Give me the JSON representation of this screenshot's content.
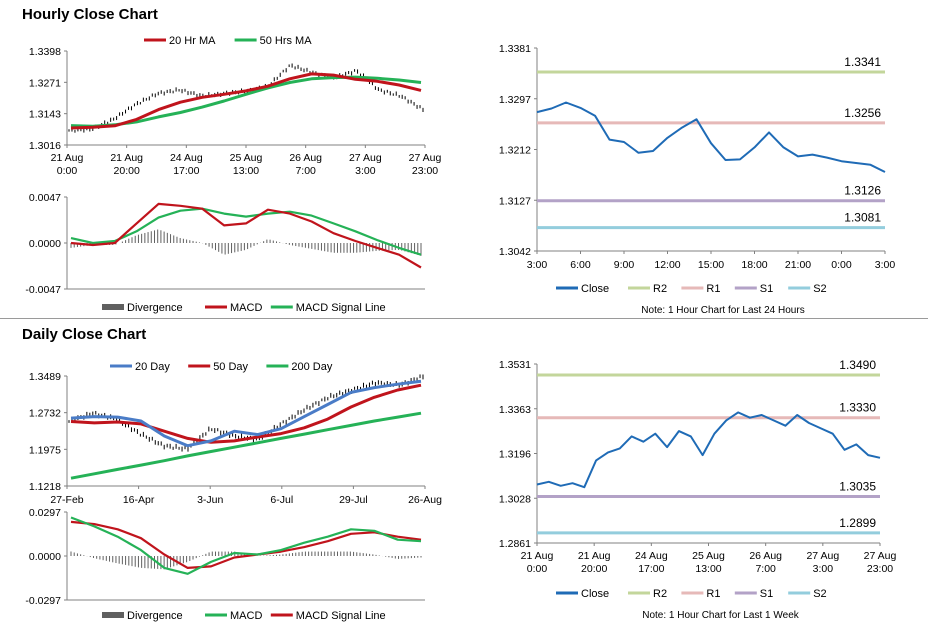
{
  "sections": [
    {
      "title": "Hourly Close Chart"
    },
    {
      "title": "Daily Close Chart"
    }
  ],
  "chart_data": [
    {
      "id": "hourly-price",
      "type": "line",
      "title": "",
      "ylim": [
        1.3016,
        1.3398
      ],
      "yticks": [
        "1.3398",
        "1.3271",
        "1.3143",
        "1.3016"
      ],
      "xticks": [
        [
          "21 Aug",
          "0:00"
        ],
        [
          "21 Aug",
          "20:00"
        ],
        [
          "24 Aug",
          "17:00"
        ],
        [
          "25 Aug",
          "13:00"
        ],
        [
          "26 Aug",
          "7:00"
        ],
        [
          "27 Aug",
          "3:00"
        ],
        [
          "27 Aug",
          "23:00"
        ]
      ],
      "legend_position": "top",
      "colors": {
        "ma_short": "#c0141c",
        "ma_long": "#25b257",
        "price": "#000000"
      },
      "series": [
        {
          "name": "20 Hr MA",
          "values": [
            1.3085,
            1.3088,
            1.3094,
            1.312,
            1.316,
            1.319,
            1.321,
            1.3222,
            1.3236,
            1.3255,
            1.3285,
            1.3305,
            1.33,
            1.3283,
            1.3275,
            1.326,
            1.3238
          ]
        },
        {
          "name": "50 Hrs MA",
          "values": [
            1.3095,
            1.3092,
            1.3098,
            1.311,
            1.313,
            1.3148,
            1.317,
            1.3195,
            1.3222,
            1.3248,
            1.327,
            1.3285,
            1.329,
            1.3292,
            1.3287,
            1.328,
            1.327
          ]
        },
        {
          "name": "Close",
          "values": [
            1.3075,
            1.308,
            1.312,
            1.318,
            1.3225,
            1.324,
            1.3215,
            1.3225,
            1.3235,
            1.3255,
            1.334,
            1.331,
            1.329,
            1.3318,
            1.324,
            1.3215,
            1.316
          ]
        }
      ]
    },
    {
      "id": "hourly-macd",
      "type": "line",
      "ylim": [
        -0.0047,
        0.0047
      ],
      "yticks": [
        "0.0047",
        "0.0000",
        "-0.0047"
      ],
      "legend_position": "bottom",
      "colors": {
        "divergence": "#606060",
        "macd": "#c0141c",
        "signal": "#25b257"
      },
      "series": [
        {
          "name": "MACD",
          "values": [
            0.0,
            -0.0002,
            0.0,
            0.002,
            0.004,
            0.0038,
            0.0035,
            0.0018,
            0.002,
            0.0034,
            0.003,
            0.0022,
            0.001,
            0.0002,
            -0.0005,
            -0.0012,
            -0.0025
          ]
        },
        {
          "name": "MACD Signal Line",
          "values": [
            0.0005,
            0.0,
            0.0002,
            0.0012,
            0.0026,
            0.0033,
            0.0035,
            0.003,
            0.0027,
            0.003,
            0.0032,
            0.0028,
            0.002,
            0.0012,
            0.0003,
            -0.0005,
            -0.0012
          ]
        },
        {
          "name": "Divergence",
          "values": [
            -0.0005,
            -0.0002,
            -0.0002,
            0.0008,
            0.0014,
            0.0005,
            0.0,
            -0.0012,
            -0.0007,
            0.0004,
            -0.0002,
            -0.0006,
            -0.001,
            -0.001,
            -0.0008,
            -0.0007,
            -0.0013
          ]
        }
      ]
    },
    {
      "id": "hourly-levels",
      "type": "line",
      "ylim": [
        1.3042,
        1.3381
      ],
      "yticks": [
        "1.3381",
        "1.3297",
        "1.3212",
        "1.3127",
        "1.3042"
      ],
      "xticks": [
        "3:00",
        "6:00",
        "9:00",
        "12:00",
        "15:00",
        "18:00",
        "21:00",
        "0:00",
        "3:00"
      ],
      "note": "Note: 1 Hour Chart for Last 24 Hours",
      "colors": {
        "close": "#1f6bb6",
        "R2": "#c3d69b",
        "R1": "#e6b9b8",
        "S1": "#b3a2c7",
        "S2": "#93cddd"
      },
      "levels": [
        {
          "name": "R2",
          "value": 1.3341,
          "label": "1.3341"
        },
        {
          "name": "R1",
          "value": 1.3256,
          "label": "1.3256"
        },
        {
          "name": "S1",
          "value": 1.3126,
          "label": "1.3126"
        },
        {
          "name": "S2",
          "value": 1.3081,
          "label": "1.3081"
        }
      ],
      "series": [
        {
          "name": "Close",
          "x": [
            3,
            4,
            5,
            6,
            7,
            8,
            9,
            10,
            11,
            12,
            13,
            14,
            15,
            16,
            17,
            18,
            19,
            20,
            21,
            22,
            23,
            24,
            25,
            26,
            27
          ],
          "values": [
            1.3274,
            1.328,
            1.329,
            1.3281,
            1.3268,
            1.3228,
            1.3224,
            1.3206,
            1.3209,
            1.3231,
            1.3248,
            1.3262,
            1.3222,
            1.3194,
            1.3195,
            1.3215,
            1.324,
            1.3215,
            1.32,
            1.3203,
            1.3198,
            1.3192,
            1.3189,
            1.3186,
            1.3174
          ]
        }
      ]
    },
    {
      "id": "daily-price",
      "type": "line",
      "ylim": [
        1.1218,
        1.3489
      ],
      "yticks": [
        "1.3489",
        "1.2732",
        "1.1975",
        "1.1218"
      ],
      "xticks": [
        "27-Feb",
        "16-Apr",
        "3-Jun",
        "6-Jul",
        "29-Jul",
        "26-Aug"
      ],
      "legend_position": "top",
      "colors": {
        "ma20": "#4a7cc7",
        "ma50": "#c0141c",
        "ma200": "#25b257",
        "price": "#000000"
      },
      "series": [
        {
          "name": "20 Day",
          "values": [
            1.262,
            1.265,
            1.264,
            1.256,
            1.225,
            1.205,
            1.215,
            1.235,
            1.228,
            1.24,
            1.265,
            1.29,
            1.315,
            1.325,
            1.332,
            1.338
          ]
        },
        {
          "name": "50 Day",
          "values": [
            1.255,
            1.252,
            1.254,
            1.25,
            1.235,
            1.22,
            1.212,
            1.215,
            1.223,
            1.23,
            1.242,
            1.26,
            1.285,
            1.305,
            1.32,
            1.33
          ]
        },
        {
          "name": "200 Day",
          "values": [
            1.138,
            1.147,
            1.156,
            1.165,
            1.174,
            1.184,
            1.193,
            1.202,
            1.211,
            1.22,
            1.229,
            1.238,
            1.247,
            1.256,
            1.264,
            1.272
          ]
        },
        {
          "name": "Close",
          "values": [
            1.255,
            1.272,
            1.26,
            1.23,
            1.205,
            1.198,
            1.24,
            1.225,
            1.218,
            1.25,
            1.28,
            1.305,
            1.32,
            1.335,
            1.33,
            1.348
          ]
        }
      ]
    },
    {
      "id": "daily-macd",
      "type": "line",
      "ylim": [
        -0.0297,
        0.0297
      ],
      "yticks": [
        "0.0297",
        "0.0000",
        "-0.0297"
      ],
      "legend_position": "bottom",
      "colors": {
        "divergence": "#606060",
        "macd": "#25b257",
        "signal": "#c0141c"
      },
      "series": [
        {
          "name": "MACD",
          "values": [
            0.026,
            0.02,
            0.013,
            0.004,
            -0.008,
            -0.012,
            -0.004,
            0.002,
            0.001,
            0.004,
            0.009,
            0.013,
            0.018,
            0.017,
            0.011,
            0.01
          ]
        },
        {
          "name": "MACD Signal Line",
          "values": [
            0.023,
            0.0215,
            0.018,
            0.012,
            0.001,
            -0.008,
            -0.007,
            -0.001,
            0.001,
            0.003,
            0.006,
            0.01,
            0.015,
            0.016,
            0.013,
            0.011
          ]
        },
        {
          "name": "Divergence",
          "values": [
            0.003,
            -0.0015,
            -0.005,
            -0.008,
            -0.009,
            -0.004,
            0.003,
            0.003,
            0.0,
            0.001,
            0.003,
            0.003,
            0.003,
            0.001,
            -0.002,
            -0.001
          ]
        }
      ]
    },
    {
      "id": "daily-levels",
      "type": "line",
      "ylim": [
        1.2861,
        1.3531
      ],
      "yticks": [
        "1.3531",
        "1.3363",
        "1.3196",
        "1.3028",
        "1.2861"
      ],
      "xticks": [
        [
          "21 Aug",
          "0:00"
        ],
        [
          "21 Aug",
          "20:00"
        ],
        [
          "24 Aug",
          "17:00"
        ],
        [
          "25 Aug",
          "13:00"
        ],
        [
          "26 Aug",
          "7:00"
        ],
        [
          "27 Aug",
          "3:00"
        ],
        [
          "27 Aug",
          "23:00"
        ]
      ],
      "note": "Note: 1 Hour Chart for  Last 1 Week",
      "colors": {
        "close": "#1f6bb6",
        "R2": "#c3d69b",
        "R1": "#e6b9b8",
        "S1": "#b3a2c7",
        "S2": "#93cddd"
      },
      "levels": [
        {
          "name": "R2",
          "value": 1.349,
          "label": "1.3490"
        },
        {
          "name": "R1",
          "value": 1.333,
          "label": "1.3330"
        },
        {
          "name": "S1",
          "value": 1.3035,
          "label": "1.3035"
        },
        {
          "name": "S2",
          "value": 1.2899,
          "label": "1.2899"
        }
      ],
      "series": [
        {
          "name": "Close",
          "values": [
            1.308,
            1.309,
            1.3075,
            1.3085,
            1.307,
            1.317,
            1.32,
            1.3215,
            1.326,
            1.324,
            1.327,
            1.322,
            1.328,
            1.326,
            1.319,
            1.327,
            1.332,
            1.335,
            1.333,
            1.334,
            1.332,
            1.33,
            1.334,
            1.331,
            1.329,
            1.327,
            1.321,
            1.323,
            1.319,
            1.318
          ]
        }
      ]
    }
  ]
}
